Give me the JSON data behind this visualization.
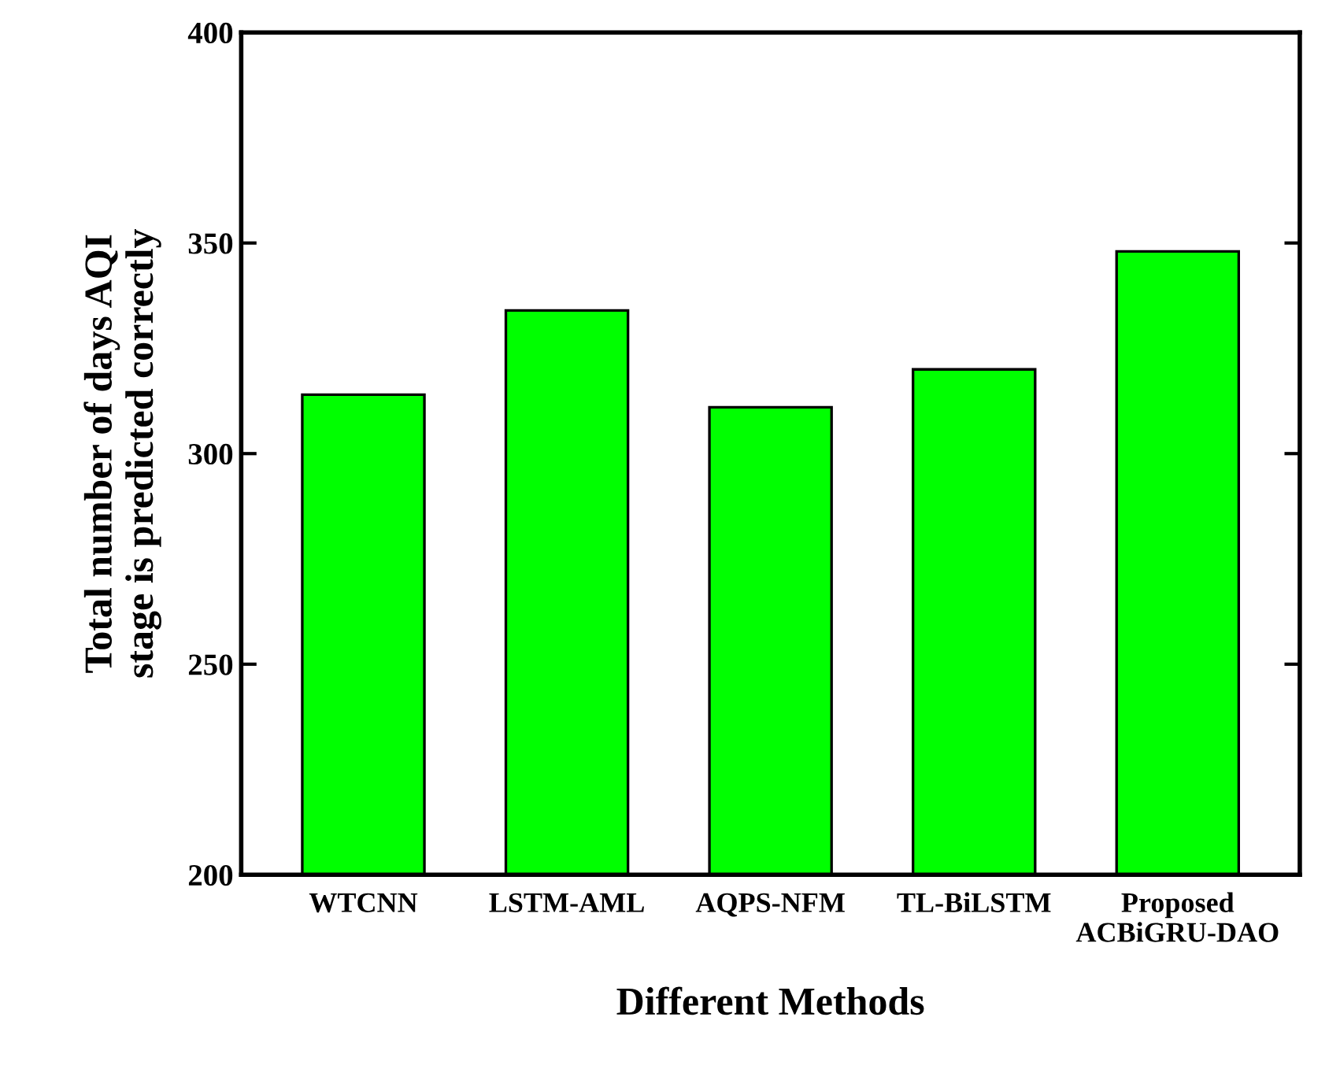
{
  "chart_data": {
    "type": "bar",
    "categories": [
      "WTCNN",
      "LSTM-AML",
      "AQPS-NFM",
      "TL-BiLSTM",
      "Proposed\nACBiGRU-DAO"
    ],
    "values": [
      314,
      334,
      311,
      320,
      348
    ],
    "color": "#00ff00",
    "xlabel": "Different Methods",
    "ylabel": "Total number of days AQI\nstage is predicted correctly",
    "ylim": [
      200,
      400
    ],
    "yticks": [
      200,
      250,
      300,
      350,
      400
    ],
    "grid": false
  }
}
